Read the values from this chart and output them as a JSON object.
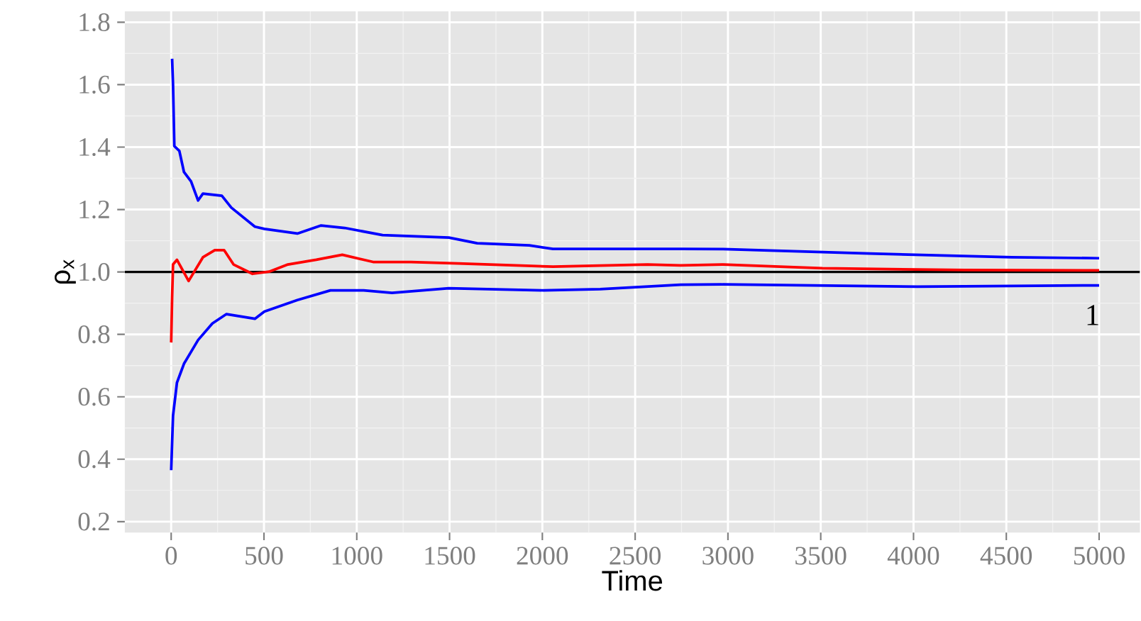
{
  "chart_data": {
    "type": "line",
    "xlabel": "Time",
    "ylabel": "ρ$_{x}$",
    "xlim": [
      -250,
      5220
    ],
    "ylim": [
      0.165,
      1.835
    ],
    "xticks": [
      0,
      500,
      1000,
      1500,
      2000,
      2500,
      3000,
      3500,
      4000,
      4500,
      5000
    ],
    "yticks": [
      {
        "value": 0.2,
        "label": "0.2"
      },
      {
        "value": 0.4,
        "label": "0.4"
      },
      {
        "value": 0.6,
        "label": "0.6"
      },
      {
        "value": 0.8,
        "label": "0.8"
      },
      {
        "value": 1.0,
        "label": "1.0"
      },
      {
        "value": 1.2,
        "label": "1.2"
      },
      {
        "value": 1.4,
        "label": "1.4"
      },
      {
        "value": 1.6,
        "label": "1.6"
      },
      {
        "value": 1.8,
        "label": "1.8"
      }
    ],
    "grid": true,
    "line_style": "solid",
    "marker": "none",
    "ref_lines": [
      {
        "axis": "y",
        "value": 1,
        "label": "1",
        "color": "#000000"
      }
    ],
    "series": [
      {
        "color": "#0000ff",
        "x": [
          5,
          10,
          17,
          44,
          69,
          107,
          145,
          171,
          273,
          324,
          451,
          502,
          680,
          808,
          935,
          1139,
          1496,
          1649,
          1930,
          2057,
          2312,
          2745,
          2974,
          3764,
          4529,
          5000
        ],
        "values": [
          1.683,
          1.6,
          1.403,
          1.388,
          1.32,
          1.29,
          1.229,
          1.251,
          1.244,
          1.206,
          1.145,
          1.138,
          1.123,
          1.149,
          1.141,
          1.118,
          1.11,
          1.092,
          1.085,
          1.074,
          1.074,
          1.074,
          1.073,
          1.059,
          1.047,
          1.044
        ]
      },
      {
        "color": "#ff0000",
        "x": [
          0,
          5,
          10,
          31,
          94,
          171,
          235,
          285,
          336,
          438,
          528,
          629,
          782,
          922,
          1088,
          1292,
          1547,
          2057,
          2567,
          2745,
          2974,
          3509,
          4274,
          5000
        ],
        "values": [
          0.774,
          0.918,
          1.024,
          1.039,
          0.971,
          1.047,
          1.07,
          1.07,
          1.024,
          0.994,
          1.001,
          1.024,
          1.039,
          1.055,
          1.032,
          1.032,
          1.027,
          1.017,
          1.024,
          1.021,
          1.024,
          1.012,
          1.006,
          1.005
        ]
      },
      {
        "color": "#0000ff",
        "x": [
          0,
          10,
          31,
          69,
          145,
          222,
          298,
          451,
          502,
          680,
          858,
          1037,
          1190,
          1496,
          2006,
          2312,
          2745,
          2974,
          4019,
          5000
        ],
        "values": [
          0.365,
          0.54,
          0.645,
          0.706,
          0.782,
          0.835,
          0.865,
          0.85,
          0.873,
          0.91,
          0.941,
          0.941,
          0.933,
          0.948,
          0.941,
          0.945,
          0.959,
          0.96,
          0.953,
          0.957
        ]
      }
    ]
  }
}
